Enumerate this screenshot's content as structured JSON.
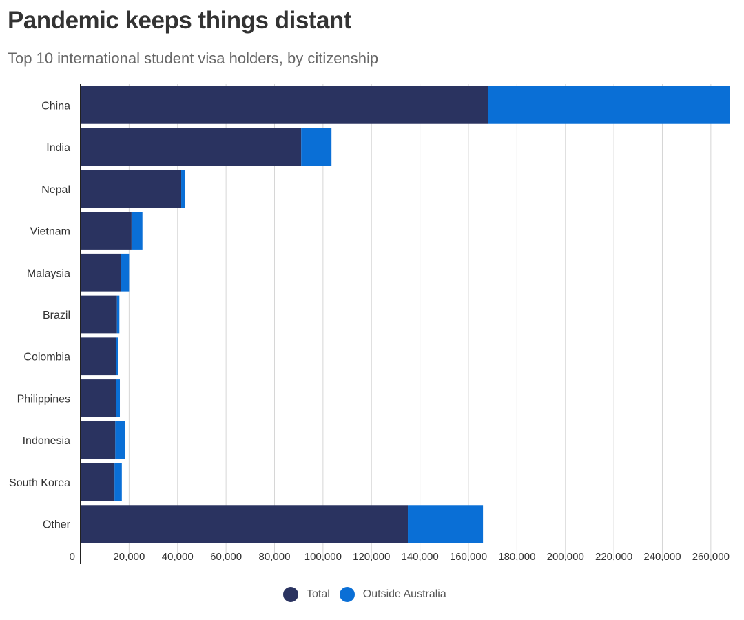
{
  "chart_data": {
    "type": "bar",
    "orientation": "horizontal",
    "stacked": true,
    "title": "Pandemic keeps things distant",
    "subtitle": "Top 10 international student visa holders, by citizenship",
    "categories": [
      "China",
      "India",
      "Nepal",
      "Vietnam",
      "Malaysia",
      "Brazil",
      "Colombia",
      "Philippines",
      "Indonesia",
      "South Korea",
      "Other"
    ],
    "series": [
      {
        "name": "Total",
        "color": "#2a3360",
        "values": [
          168000,
          91000,
          41500,
          21000,
          16500,
          15000,
          14500,
          14500,
          14300,
          14000,
          135000
        ]
      },
      {
        "name": "Outside Australia",
        "color": "#0a6fd6",
        "values": [
          100000,
          12500,
          1700,
          4500,
          3500,
          1000,
          1000,
          1700,
          4000,
          3000,
          31000
        ]
      }
    ],
    "xlim": [
      0,
      268000
    ],
    "xticks": [
      0,
      20000,
      40000,
      60000,
      80000,
      100000,
      120000,
      140000,
      160000,
      180000,
      200000,
      220000,
      240000,
      260000
    ],
    "xtick_labels": [
      "0",
      "20,000",
      "40,000",
      "60,000",
      "80,000",
      "100,000",
      "120,000",
      "140,000",
      "160,000",
      "180,000",
      "200,000",
      "220,000",
      "240,000",
      "260,000"
    ],
    "grid": true,
    "legend": "bottom-center"
  }
}
